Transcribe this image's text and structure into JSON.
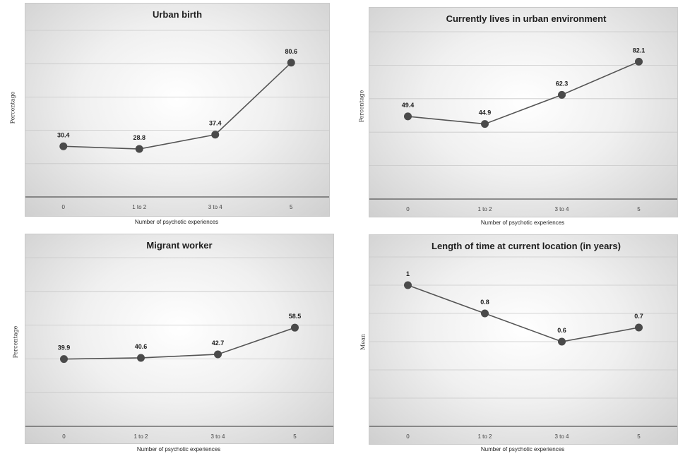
{
  "chart_data": [
    {
      "type": "line",
      "title": "Urban birth",
      "ylabel": "Percentage",
      "xlabel": "Number of psychotic experiences",
      "categories": [
        "0",
        "1 to 2",
        "3 to 4",
        "5"
      ],
      "values": [
        30.4,
        28.8,
        37.4,
        80.6
      ],
      "labels": [
        "30.4",
        "28.8",
        "37.4",
        "80.6"
      ],
      "ylim": [
        0,
        100
      ],
      "gridlines": [
        0,
        20,
        40,
        60,
        80,
        100
      ],
      "grid": true,
      "legend": "none",
      "colors": {
        "line": "#555555",
        "marker": "#4a4a4a"
      }
    },
    {
      "type": "line",
      "title": "Currently lives in urban environment",
      "ylabel": "Percentage",
      "xlabel": "Number of psychotic experiences",
      "categories": [
        "0",
        "1 to 2",
        "3 to 4",
        "5"
      ],
      "values": [
        49.4,
        44.9,
        62.3,
        82.1
      ],
      "labels": [
        "49.4",
        "44.9",
        "62.3",
        "82.1"
      ],
      "ylim": [
        0,
        100
      ],
      "gridlines": [
        0,
        20,
        40,
        60,
        80,
        100
      ],
      "grid": true,
      "legend": "none",
      "colors": {
        "line": "#555555",
        "marker": "#4a4a4a"
      }
    },
    {
      "type": "line",
      "title": "Migrant worker",
      "ylabel": "Percentage",
      "xlabel": "Number of psychotic experiences",
      "categories": [
        "0",
        "1 to 2",
        "3 to 4",
        "5"
      ],
      "values": [
        39.9,
        40.6,
        42.7,
        58.5
      ],
      "labels": [
        "39.9",
        "40.6",
        "42.7",
        "58.5"
      ],
      "ylim": [
        0,
        100
      ],
      "gridlines": [
        0,
        20,
        40,
        60,
        80,
        100
      ],
      "grid": true,
      "legend": "none",
      "colors": {
        "line": "#555555",
        "marker": "#4a4a4a"
      }
    },
    {
      "type": "line",
      "title": "Length of time at current location (in years)",
      "ylabel": "Mean",
      "xlabel": "Number of psychotic experiences",
      "categories": [
        "0",
        "1 to 2",
        "3 to 4",
        "5"
      ],
      "values": [
        1.0,
        0.8,
        0.6,
        0.7
      ],
      "labels": [
        "1",
        "0.8",
        "0.6",
        "0.7"
      ],
      "ylim": [
        0,
        1.2
      ],
      "gridlines": [
        0,
        0.2,
        0.4,
        0.6,
        0.8,
        1.0,
        1.2
      ],
      "grid": true,
      "legend": "none",
      "colors": {
        "line": "#555555",
        "marker": "#4a4a4a"
      }
    }
  ]
}
